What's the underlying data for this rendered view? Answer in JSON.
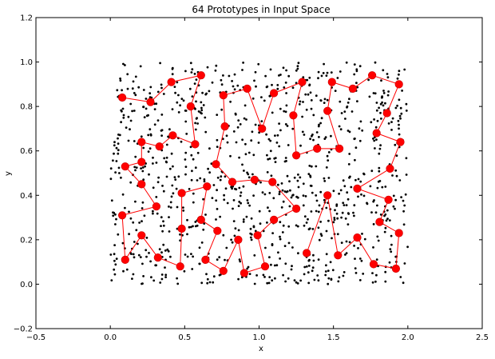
{
  "chart_data": {
    "type": "scatter",
    "title": "64 Prototypes in Input Space",
    "xlabel": "x",
    "ylabel": "y",
    "xlim": [
      -0.5,
      2.5
    ],
    "ylim": [
      -0.2,
      1.2
    ],
    "xticks": [
      "−0.5",
      "0.0",
      "0.5",
      "1.0",
      "1.5",
      "2.0",
      "2.5"
    ],
    "yticks": [
      "−0.2",
      "0.0",
      "0.2",
      "0.4",
      "0.6",
      "0.8",
      "1.0",
      "1.2"
    ],
    "grid": false,
    "colors": {
      "samples": "#000000",
      "prototypes": "#ff0000",
      "path": "#ff0000"
    },
    "series": [
      {
        "kind": "samples",
        "marker": "dot",
        "sampled_region": {
          "x": [
            0.0,
            2.0
          ],
          "y": [
            0.0,
            1.0
          ]
        },
        "count": 1000
      },
      {
        "kind": "prototypes",
        "marker": "circle",
        "connected": true,
        "points": [
          [
            0.08,
            0.84
          ],
          [
            0.27,
            0.82
          ],
          [
            0.41,
            0.91
          ],
          [
            0.61,
            0.94
          ],
          [
            0.54,
            0.8
          ],
          [
            0.57,
            0.63
          ],
          [
            0.42,
            0.67
          ],
          [
            0.33,
            0.62
          ],
          [
            0.21,
            0.64
          ],
          [
            0.21,
            0.55
          ],
          [
            0.1,
            0.53
          ],
          [
            0.21,
            0.45
          ],
          [
            0.31,
            0.35
          ],
          [
            0.08,
            0.31
          ],
          [
            0.1,
            0.11
          ],
          [
            0.21,
            0.22
          ],
          [
            0.32,
            0.12
          ],
          [
            0.47,
            0.08
          ],
          [
            0.48,
            0.25
          ],
          [
            0.48,
            0.41
          ],
          [
            0.65,
            0.44
          ],
          [
            0.61,
            0.29
          ],
          [
            0.72,
            0.24
          ],
          [
            0.64,
            0.11
          ],
          [
            0.76,
            0.06
          ],
          [
            0.86,
            0.2
          ],
          [
            0.9,
            0.05
          ],
          [
            1.04,
            0.08
          ],
          [
            0.99,
            0.22
          ],
          [
            1.1,
            0.29
          ],
          [
            1.25,
            0.34
          ],
          [
            1.09,
            0.46
          ],
          [
            0.97,
            0.47
          ],
          [
            0.82,
            0.46
          ],
          [
            0.71,
            0.54
          ],
          [
            0.77,
            0.71
          ],
          [
            0.76,
            0.85
          ],
          [
            0.92,
            0.88
          ],
          [
            1.02,
            0.7
          ],
          [
            1.1,
            0.86
          ],
          [
            1.29,
            0.91
          ],
          [
            1.23,
            0.76
          ],
          [
            1.25,
            0.58
          ],
          [
            1.39,
            0.61
          ],
          [
            1.54,
            0.61
          ],
          [
            1.46,
            0.78
          ],
          [
            1.49,
            0.91
          ],
          [
            1.63,
            0.88
          ],
          [
            1.76,
            0.94
          ],
          [
            1.94,
            0.9
          ],
          [
            1.86,
            0.77
          ],
          [
            1.79,
            0.68
          ],
          [
            1.95,
            0.64
          ],
          [
            1.88,
            0.52
          ],
          [
            1.66,
            0.43
          ],
          [
            1.87,
            0.38
          ],
          [
            1.81,
            0.28
          ],
          [
            1.94,
            0.23
          ],
          [
            1.92,
            0.07
          ],
          [
            1.77,
            0.09
          ],
          [
            1.66,
            0.21
          ],
          [
            1.53,
            0.13
          ],
          [
            1.46,
            0.4
          ],
          [
            1.32,
            0.14
          ]
        ]
      }
    ]
  }
}
